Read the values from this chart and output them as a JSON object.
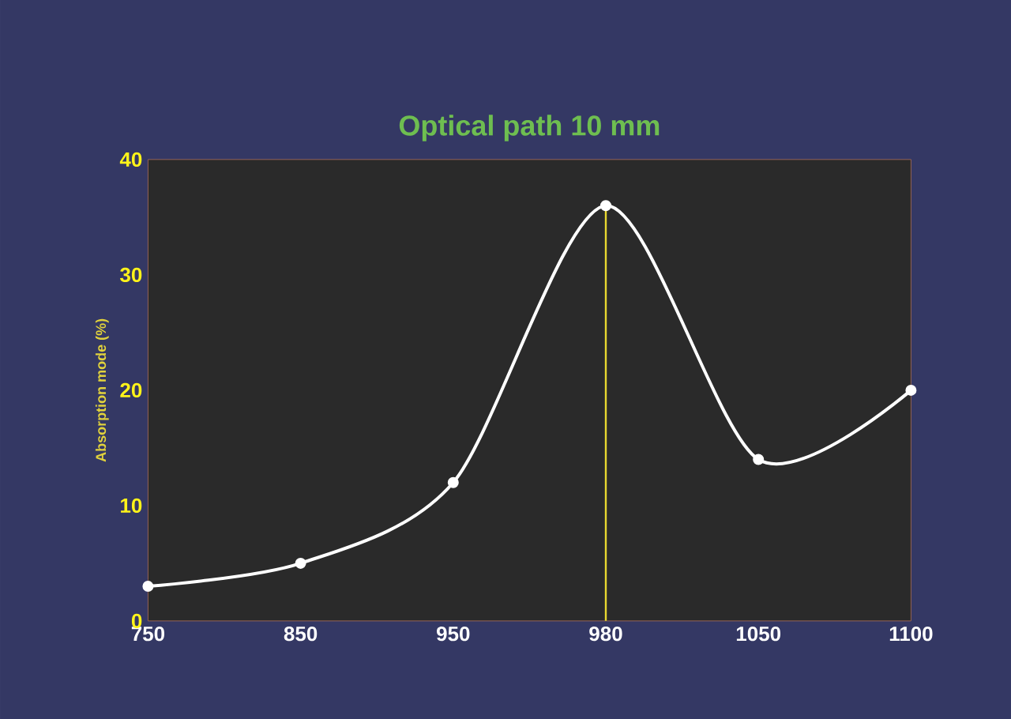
{
  "chart_data": {
    "type": "line",
    "title": "Optical path 10 mm",
    "ylabel": "Absorption mode (%)",
    "categories": [
      "750",
      "850",
      "950",
      "980",
      "1050",
      "1100"
    ],
    "values": [
      3,
      5,
      12,
      36,
      14,
      20
    ],
    "color": "#ffffff",
    "marker": "circle",
    "ylim": [
      0,
      40
    ],
    "yticks": [
      0,
      10,
      20,
      30,
      40
    ],
    "ref_lines": [
      {
        "axis": "x",
        "value": "980",
        "color": "#e8d830"
      }
    ]
  }
}
